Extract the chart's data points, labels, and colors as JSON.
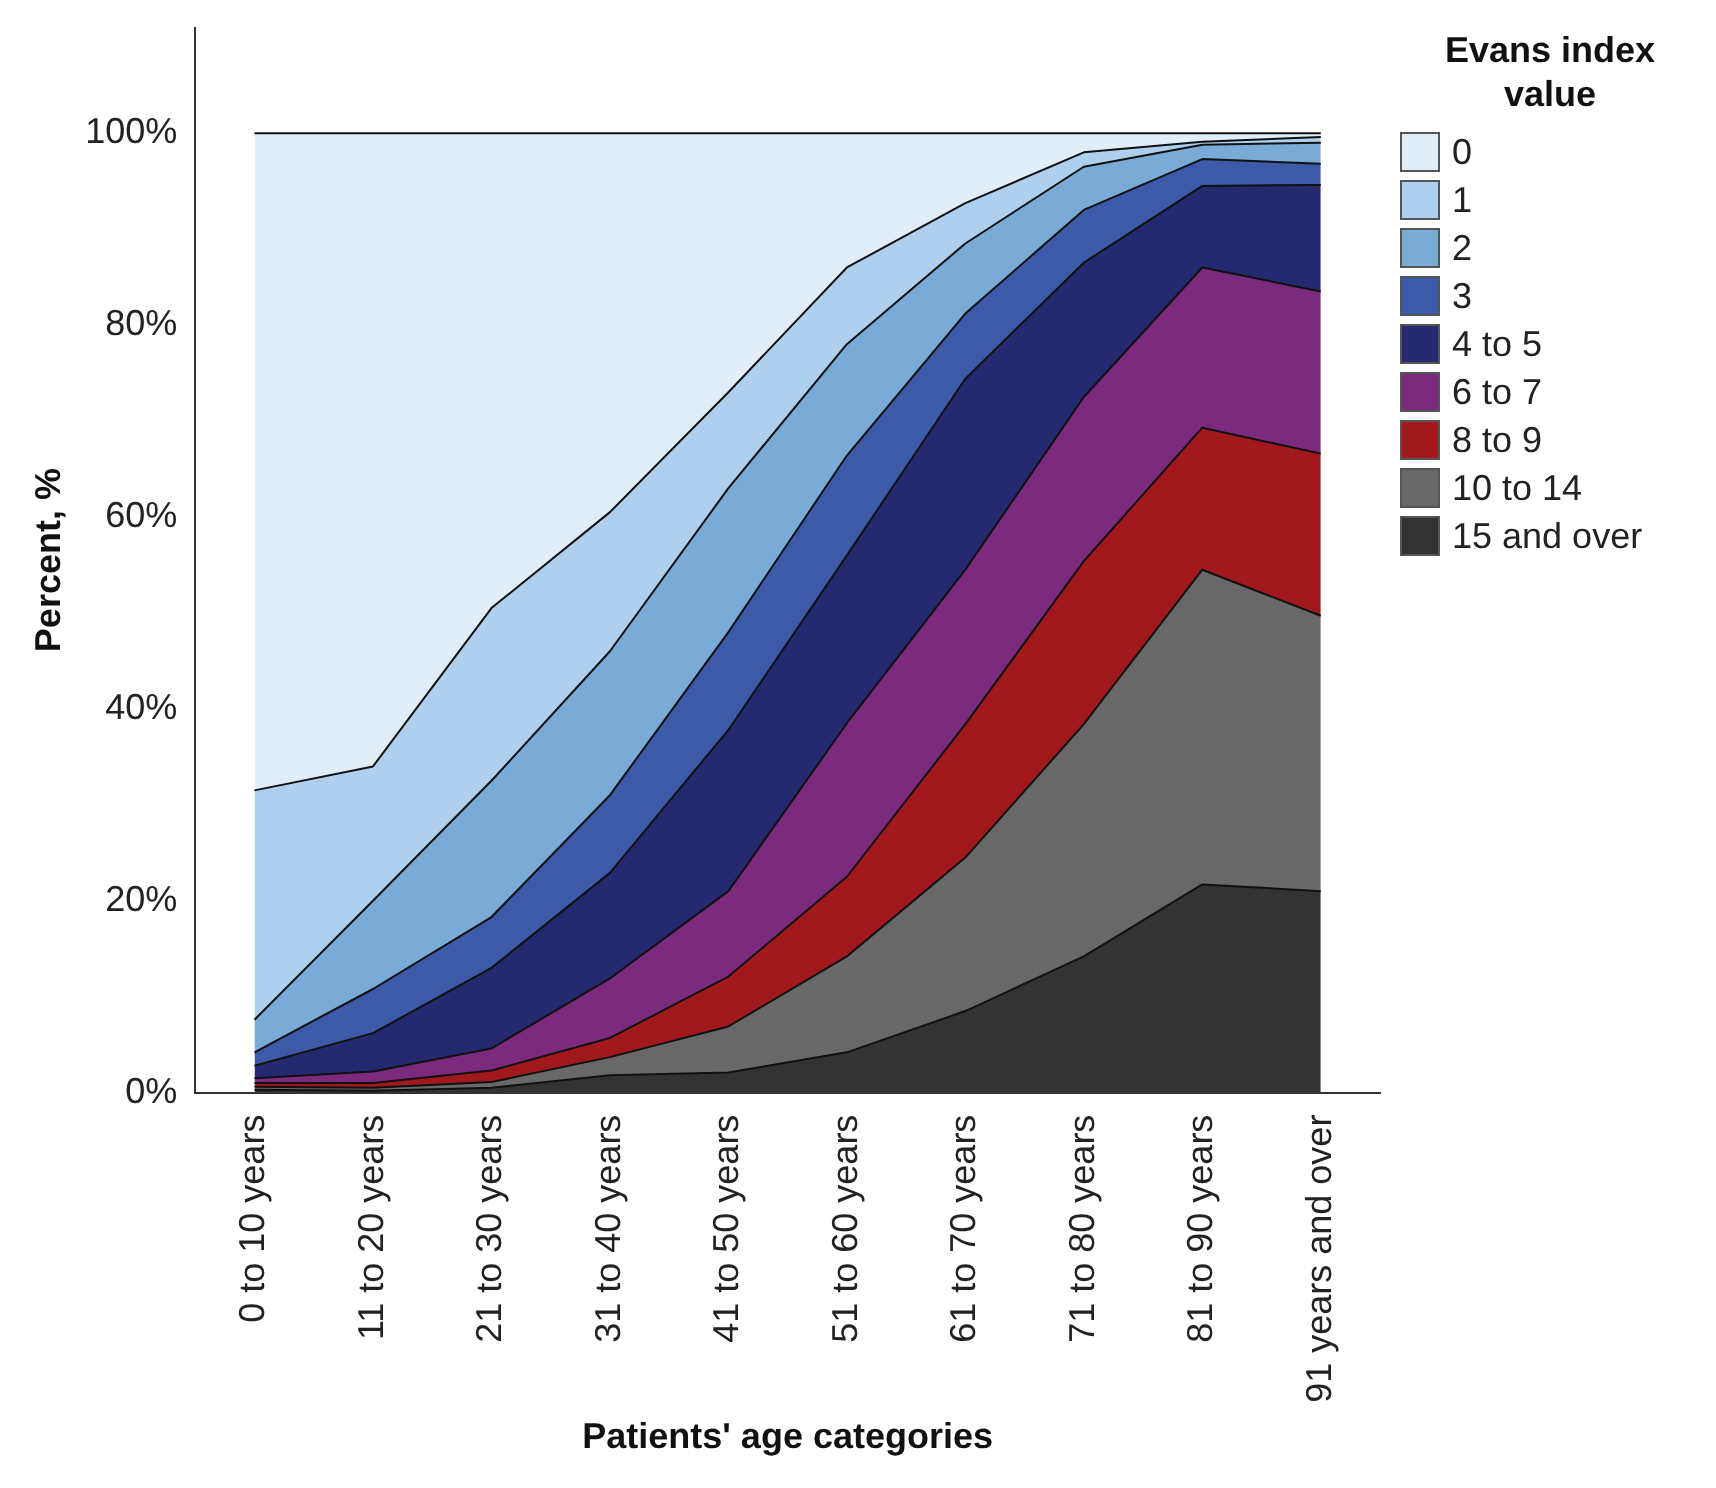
{
  "chart_data": {
    "type": "area",
    "stacked": true,
    "xlabel": "Patients' age categories",
    "ylabel": "Percent, %",
    "legend_title": "Evans index value",
    "legend": "right",
    "categories": [
      "0 to 10 years",
      "11 to 20 years",
      "21 to 30 years",
      "31 to 40 years",
      "41 to 50 years",
      "51 to 60 years",
      "61 to 70 years",
      "71 to 80 years",
      "81 to 90 years",
      "91 years and over"
    ],
    "ylim": [
      0,
      111
    ],
    "yticks": [
      {
        "value": 0,
        "label": "0%"
      },
      {
        "value": 20,
        "label": "20%"
      },
      {
        "value": 40,
        "label": "40%"
      },
      {
        "value": 60,
        "label": "60%"
      },
      {
        "value": 80,
        "label": "80%"
      },
      {
        "value": 100,
        "label": "100%"
      }
    ],
    "series": [
      {
        "name": "15 and over",
        "color": "#333333",
        "values": [
          0.3,
          0.2,
          0.5,
          1.8,
          2.1,
          4.2,
          8.5,
          14.2,
          21.7,
          21
        ]
      },
      {
        "name": "10 to 14",
        "color": "#686868",
        "values": [
          0.3,
          0.3,
          0.6,
          1.9,
          4.8,
          10,
          16,
          24.2,
          32.8,
          28.7
        ]
      },
      {
        "name": "8 to 9",
        "color": "#a1191c",
        "values": [
          0.4,
          0.5,
          1.2,
          2,
          5.2,
          8.3,
          13.9,
          17,
          14.8,
          16.9
        ]
      },
      {
        "name": "6 to 7",
        "color": "#7b2a7d",
        "values": [
          0.5,
          1.2,
          2.3,
          6.2,
          8.9,
          16,
          16.1,
          17.1,
          16.7,
          16.9
        ]
      },
      {
        "name": "4 to 5",
        "color": "#252a70",
        "values": [
          1.3,
          4,
          8.4,
          11,
          16.8,
          17.5,
          19.9,
          14,
          8.5,
          11.1
        ]
      },
      {
        "name": "3",
        "color": "#3d5aa9",
        "values": [
          1.4,
          4.6,
          5.3,
          8.1,
          10.2,
          10.4,
          6.8,
          5.5,
          2.8,
          2.2
        ]
      },
      {
        "name": "2",
        "color": "#7aaad6",
        "values": [
          3.4,
          9.2,
          14.2,
          15,
          15,
          11.6,
          7.3,
          4.5,
          1.5,
          2.2
        ]
      },
      {
        "name": "1",
        "color": "#aed0ee",
        "values": [
          23.9,
          14,
          18,
          14.5,
          10,
          8,
          4.2,
          1.5,
          0.3,
          0.6
        ]
      },
      {
        "name": "0",
        "color": "#e1eefa",
        "values": [
          68.5,
          66,
          49.5,
          39.5,
          27,
          14,
          7.3,
          2,
          0.9,
          0.4
        ]
      }
    ]
  }
}
